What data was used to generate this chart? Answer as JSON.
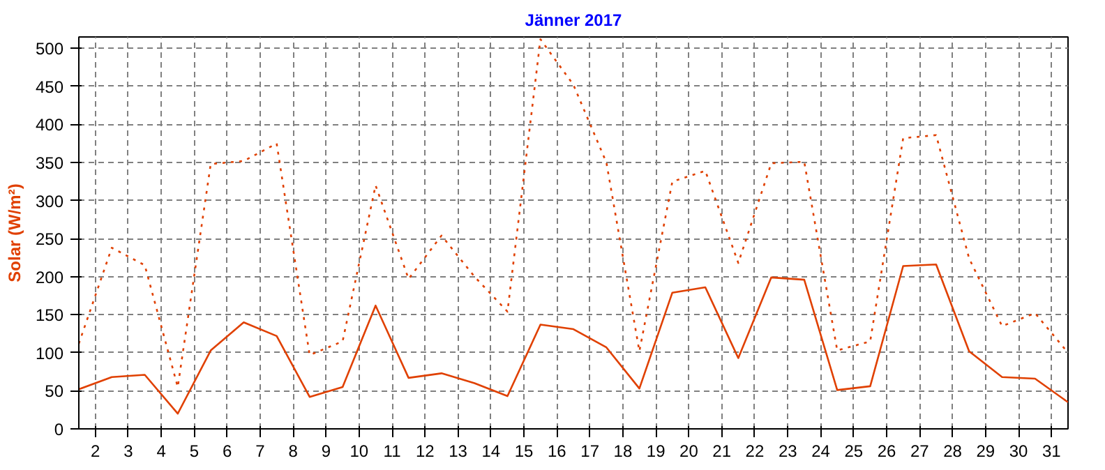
{
  "chart_data": {
    "type": "line",
    "title": "Jänner 2017",
    "ylabel": "Solar (W/m²)",
    "x": [
      1.5,
      2.5,
      3.5,
      4.5,
      5.5,
      6.5,
      7.5,
      8.5,
      9.5,
      10.5,
      11.5,
      12.5,
      13.5,
      14.5,
      15.5,
      16.5,
      17.5,
      18.5,
      19.5,
      20.5,
      21.5,
      22.5,
      23.5,
      24.5,
      25.5,
      26.5,
      27.5,
      28.5,
      29.5,
      30.5,
      31.5
    ],
    "series": [
      {
        "color": "#e04000",
        "line_style": "solid",
        "values": [
          52,
          68,
          71,
          20,
          103,
          140,
          122,
          42,
          55,
          162,
          67,
          73,
          60,
          43,
          137,
          131,
          107,
          53,
          179,
          186,
          93,
          199,
          196,
          51,
          56,
          214,
          216,
          102,
          68,
          66,
          35
        ]
      },
      {
        "color": "#e04000",
        "line_style": "dotted",
        "values": [
          112,
          238,
          215,
          55,
          348,
          352,
          375,
          97,
          115,
          320,
          197,
          254,
          200,
          154,
          512,
          452,
          350,
          102,
          325,
          339,
          218,
          349,
          351,
          103,
          115,
          382,
          386,
          224,
          135,
          152,
          100
        ]
      }
    ],
    "xlim": [
      1.5,
      31.5
    ],
    "xticks": [
      2,
      3,
      4,
      5,
      6,
      7,
      8,
      9,
      10,
      11,
      12,
      13,
      14,
      15,
      16,
      17,
      18,
      19,
      20,
      21,
      22,
      23,
      24,
      25,
      26,
      27,
      28,
      29,
      30,
      31
    ],
    "ylim": [
      0,
      515
    ],
    "yticks": [
      0,
      50,
      100,
      150,
      200,
      250,
      300,
      350,
      400,
      450,
      500
    ],
    "grid": true
  }
}
